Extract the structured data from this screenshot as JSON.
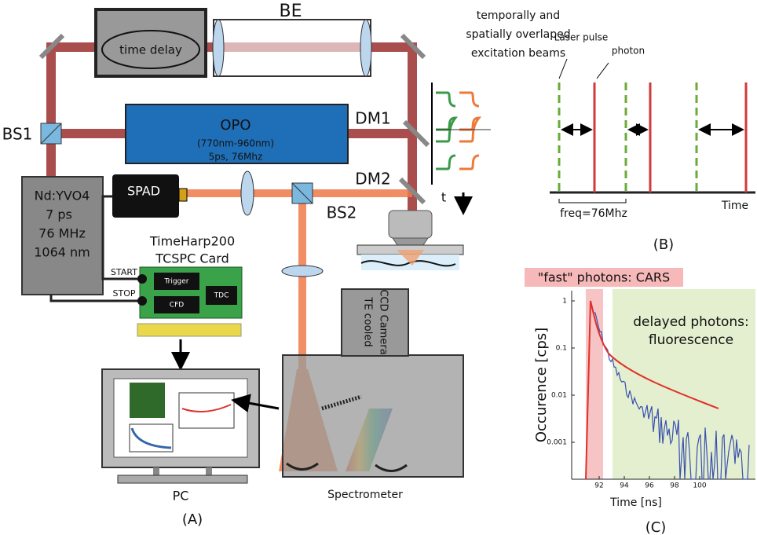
{
  "panel_a": {
    "be": "BE",
    "time_delay": "time delay",
    "overlap_note": [
      "temporally and",
      "spatially overlaped",
      "excitation beams"
    ],
    "bs1": "BS1",
    "opo": {
      "name": "OPO",
      "range": "(770nm-960nm)",
      "specs": "5ps, 76Mhz"
    },
    "dm1": "DM1",
    "dm2": "DM2",
    "spad": "SPAD",
    "bs2": "BS2",
    "t_axis": "t",
    "laser": [
      "Nd:YVO4",
      "7 ps",
      "76 MHz",
      "1064 nm"
    ],
    "card_title": [
      "TimeHarp200",
      "TCSPC Card"
    ],
    "start": "START",
    "stop": "STOP",
    "trigger": "Trigger",
    "cfd": "CFD",
    "tdc": "TDC",
    "camera": [
      "TE cooled",
      "CCD Camera"
    ],
    "pc": "PC",
    "spectrometer": "Spectrometer",
    "label": "(A)"
  },
  "panel_b": {
    "laser_pulse": "Laser pulse",
    "photon": "photon",
    "freq": "freq=76Mhz",
    "time": "Time",
    "label": "(B)"
  },
  "panel_c": {
    "highlight": "\"fast\" photons: CARS",
    "y_label": "Occurence [cps]",
    "y_ticks": [
      "1",
      "0.1",
      "0.01",
      "0.001"
    ],
    "x_ticks": [
      "92",
      "94",
      "96",
      "98",
      "100"
    ],
    "x_label": "Time [ns]",
    "delayed": [
      "delayed photons:",
      "fluorescence"
    ],
    "label": "(C)"
  }
}
